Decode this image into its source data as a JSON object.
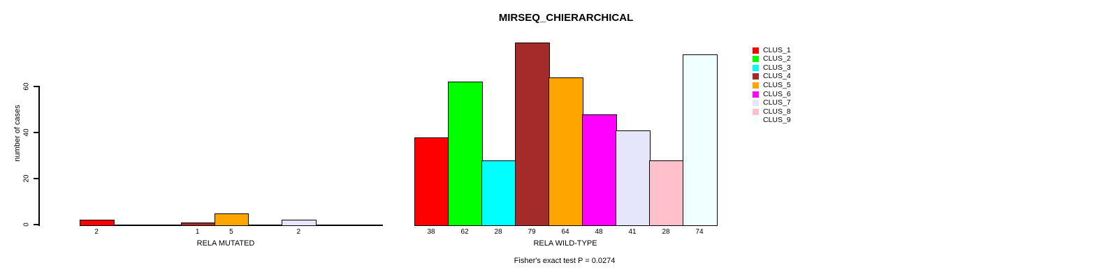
{
  "title": "MIRSEQ_CHIERARCHICAL",
  "annotation": "Fisher's exact test P = 0.0274",
  "palette": [
    "#FF0000",
    "#00FF00",
    "#00FFFF",
    "#A52A2A",
    "#FFA500",
    "#FF00FF",
    "#E6E6FA",
    "#FFC0CB",
    "#F0FFFF"
  ],
  "axis_color": "#000000",
  "background_color": "#FFFFFF",
  "legend": {
    "position": "top-right",
    "items": [
      {
        "label": "CLUS_1",
        "color": "#FF0000"
      },
      {
        "label": "CLUS_2",
        "color": "#00FF00"
      },
      {
        "label": "CLUS_3",
        "color": "#00FFFF"
      },
      {
        "label": "CLUS_4",
        "color": "#A52A2A"
      },
      {
        "label": "CLUS_5",
        "color": "#FFA500"
      },
      {
        "label": "CLUS_6",
        "color": "#FF00FF"
      },
      {
        "label": "CLUS_7",
        "color": "#E6E6FA"
      },
      {
        "label": "CLUS_8",
        "color": "#FFC0CB"
      },
      {
        "label": "CLUS_9",
        "color": "#F0FFFF"
      }
    ]
  },
  "chart_data": [
    {
      "type": "bar",
      "title": "MIRSEQ_CHIERARCHICAL",
      "xlabel": "RELA MUTATED",
      "ylabel": "number of cases",
      "categories": [
        "CLUS_1",
        "CLUS_2",
        "CLUS_3",
        "CLUS_4",
        "CLUS_5",
        "CLUS_6",
        "CLUS_7",
        "CLUS_8",
        "CLUS_9"
      ],
      "values": [
        2,
        0,
        0,
        1,
        5,
        0,
        2,
        0,
        0
      ],
      "bar_labels": [
        "2",
        "",
        "",
        "1",
        "5",
        "",
        "2",
        "",
        ""
      ],
      "colors": [
        "#FF0000",
        "#00FF00",
        "#00FFFF",
        "#A52A2A",
        "#FFA500",
        "#FF00FF",
        "#E6E6FA",
        "#FFC0CB",
        "#F0FFFF"
      ],
      "yticks": [
        0,
        20,
        40,
        60
      ],
      "ylim": [
        0,
        82
      ],
      "grid": false,
      "legend_position": "none"
    },
    {
      "type": "bar",
      "title": "",
      "xlabel": "RELA WILD-TYPE",
      "ylabel": "",
      "categories": [
        "CLUS_1",
        "CLUS_2",
        "CLUS_3",
        "CLUS_4",
        "CLUS_5",
        "CLUS_6",
        "CLUS_7",
        "CLUS_8",
        "CLUS_9"
      ],
      "values": [
        38,
        62,
        28,
        79,
        64,
        48,
        41,
        28,
        74
      ],
      "bar_labels": [
        "38",
        "62",
        "28",
        "79",
        "64",
        "48",
        "41",
        "28",
        "74"
      ],
      "colors": [
        "#FF0000",
        "#00FF00",
        "#00FFFF",
        "#A52A2A",
        "#FFA500",
        "#FF00FF",
        "#E6E6FA",
        "#FFC0CB",
        "#F0FFFF"
      ],
      "yticks": [],
      "ylim": [
        0,
        82
      ],
      "grid": false,
      "annotation": "Fisher's exact test P = 0.0274",
      "legend_position": "top-right"
    }
  ]
}
